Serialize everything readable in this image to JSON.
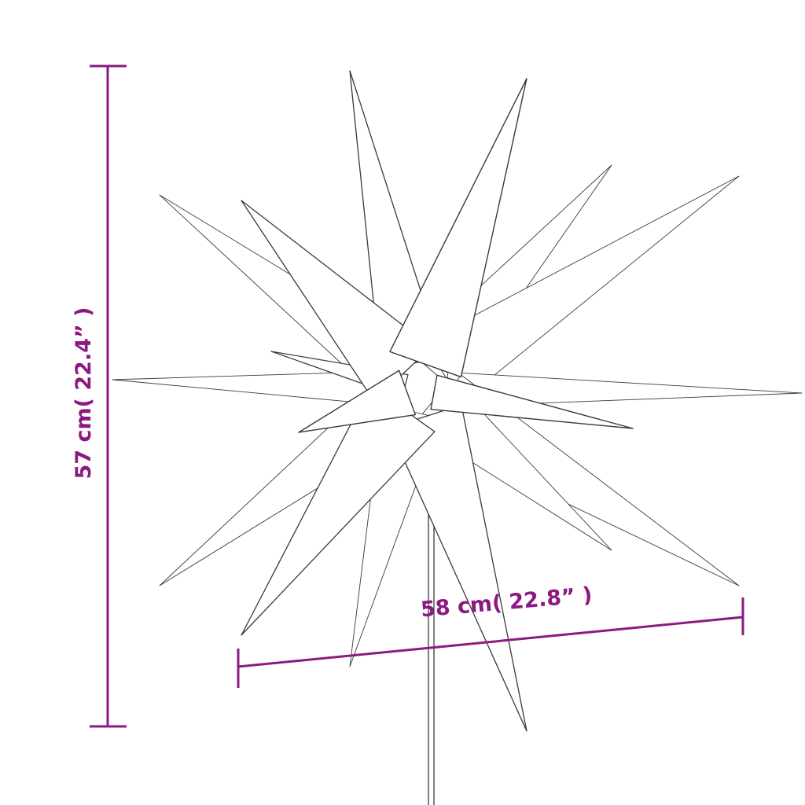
{
  "dimensions": {
    "height_label": "57 cm( 22.4” )",
    "width_label": "58 cm( 22.8” )",
    "color": "#8b1a80"
  },
  "illustration": {
    "subject": "star-outline-icon",
    "line_color": "#3a3a3a"
  }
}
